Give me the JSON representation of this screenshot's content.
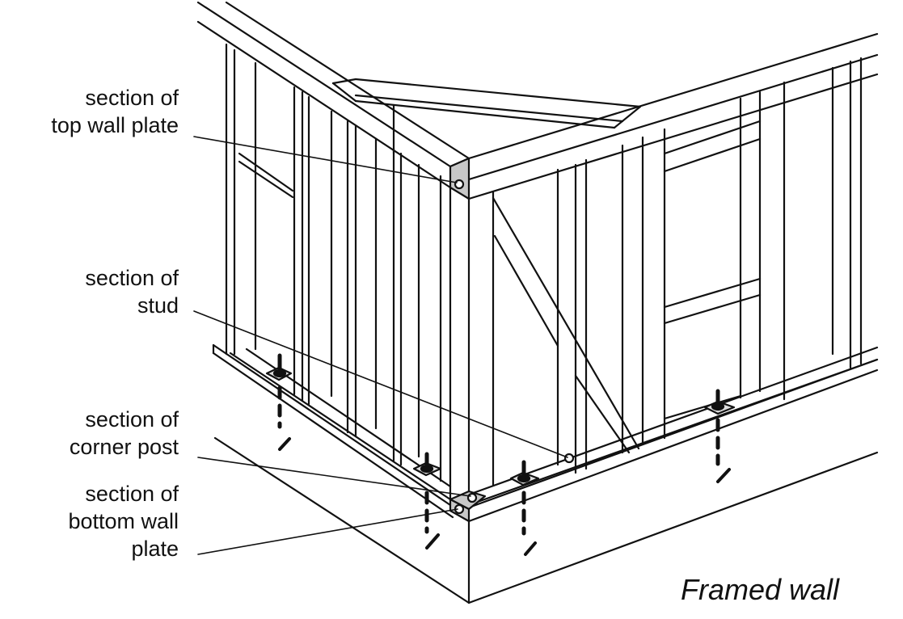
{
  "labels": {
    "top_wall_plate": [
      "section of",
      "top wall plate"
    ],
    "stud": [
      "section of",
      "stud"
    ],
    "corner_post": [
      "section of",
      "corner post"
    ],
    "bottom_wall_plate": [
      "section of",
      "bottom wall",
      "plate"
    ]
  },
  "caption": "Framed wall",
  "colors": {
    "line": "#111111",
    "section_fill": "#c8c8c8",
    "background": "#ffffff"
  }
}
